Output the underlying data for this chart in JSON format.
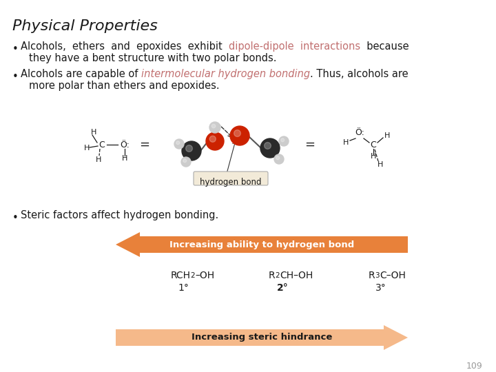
{
  "title": "Physical Properties",
  "title_fontsize": 16,
  "background_color": "#ffffff",
  "text_color": "#1a1a1a",
  "highlight_color1": "#c17070",
  "highlight_color2": "#c17070",
  "green_color": "#c17070",
  "arrow_color_top": "#e8813a",
  "arrow_color_bottom": "#f5b98a",
  "page_number": "109",
  "bullet1_part1": "Alcohols,  ethers  and  epoxides  exhibit  ",
  "bullet1_highlight": "dipole-dipole  interactions",
  "bullet1_part2": "  because",
  "bullet1_line2": "they have a bent structure with two polar bonds.",
  "bullet2_part1": "Alcohols are capable of ",
  "bullet2_highlight": "intermolecular hydrogen bonding",
  "bullet2_part2": ". Thus, alcohols are",
  "bullet2_line2": "more polar than ethers and epoxides.",
  "bullet3_line1": "Steric factors affect hydrogen bonding.",
  "hbond_label": "hydrogen bond",
  "arrow_top_text": "Increasing ability to hydrogen bond",
  "arrow_bottom_text": "Increasing steric hindrance",
  "compound1_main": "RCH",
  "compound1_sub": "2",
  "compound1_end": "–OH",
  "compound2_main": "R",
  "compound2_sub": "2",
  "compound2_end": "CH–OH",
  "compound3_main": "R",
  "compound3_sub": "3",
  "compound3_end": "C–OH",
  "degree1": "1°",
  "degree2": "2°",
  "degree3": "3°"
}
